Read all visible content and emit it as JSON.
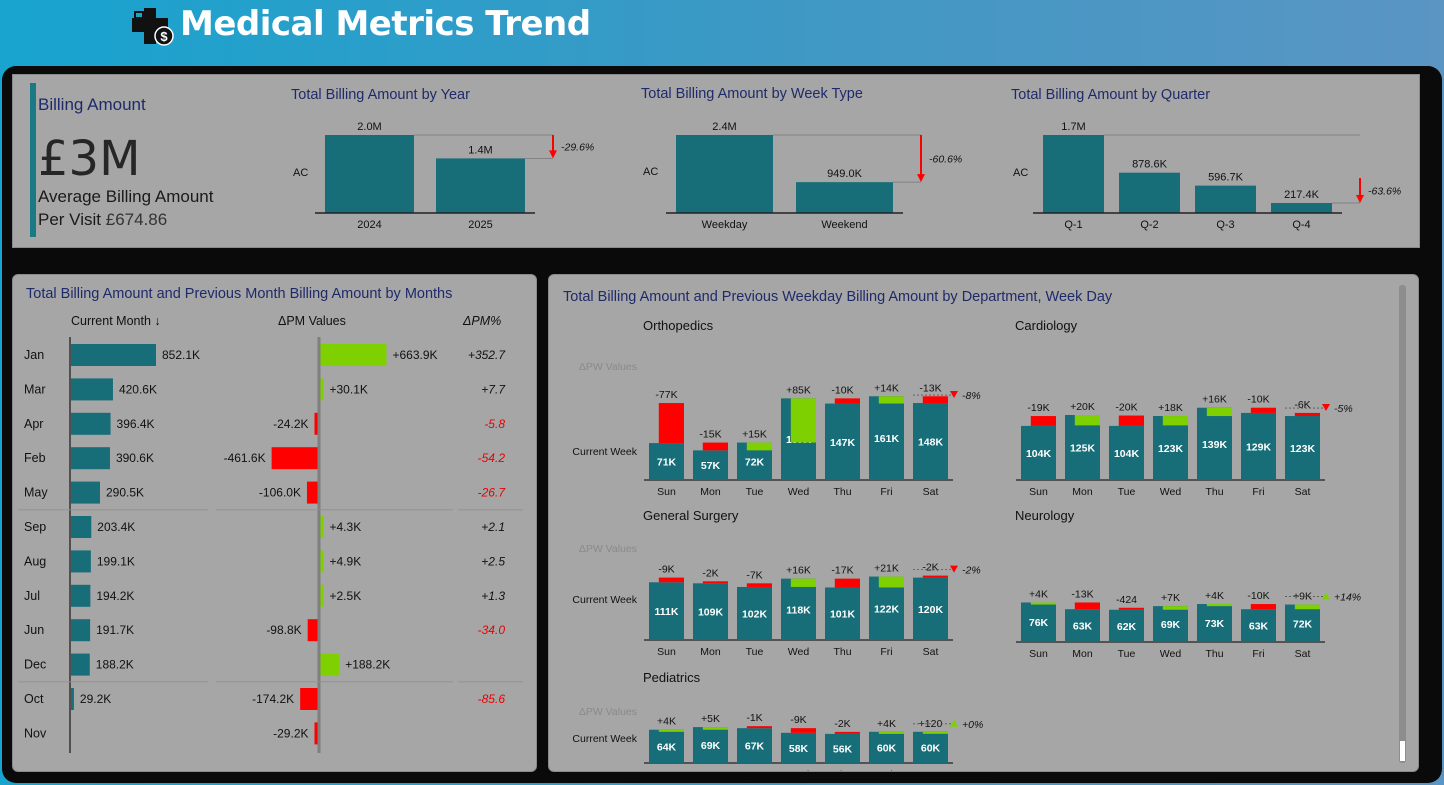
{
  "header": {
    "title": "Medical Metrics Trend",
    "logo_icon": "medical-billing-icon"
  },
  "kpi": {
    "label": "Billing Amount",
    "value": "£3M",
    "avg_label_1": "Average Billing Amount",
    "avg_label_2": "Per Visit",
    "avg_value": "£674.86"
  },
  "colors": {
    "bar": "#176d78",
    "positive": "#7ed000",
    "negative": "#ff0000",
    "title": "#1f2a6b",
    "panel": "#a6a6a6"
  },
  "chart_data": [
    {
      "id": "year",
      "type": "bar",
      "title": "Total Billing Amount by Year",
      "row_label": "AC",
      "categories": [
        "2024",
        "2025"
      ],
      "values": [
        2.0,
        1.4
      ],
      "labels": [
        "2.0M",
        "1.4M"
      ],
      "variance": "-29.6%"
    },
    {
      "id": "weektype",
      "type": "bar",
      "title": "Total Billing Amount by Week Type",
      "row_label": "AC",
      "categories": [
        "Weekday",
        "Weekend"
      ],
      "values": [
        2400,
        949
      ],
      "labels": [
        "2.4M",
        "949.0K"
      ],
      "variance": "-60.6%"
    },
    {
      "id": "quarter",
      "type": "bar",
      "title": "Total Billing Amount by Quarter",
      "row_label": "AC",
      "categories": [
        "Q-1",
        "Q-2",
        "Q-3",
        "Q-4"
      ],
      "values": [
        1700,
        878.6,
        596.7,
        217.4
      ],
      "labels": [
        "1.7M",
        "878.6K",
        "596.7K",
        "217.4K"
      ],
      "variance": "-63.6%"
    },
    {
      "id": "months",
      "type": "table",
      "title": "Total Billing Amount and Previous Month Billing Amount by Months",
      "columns": [
        "Current Month ↓",
        "ΔPM Values",
        "ΔPM%"
      ],
      "rows": [
        {
          "month": "Jan",
          "value": 852.1,
          "label": "852.1K",
          "delta": 663.9,
          "delta_label": "+663.9K",
          "pct": "+352.7"
        },
        {
          "month": "Mar",
          "value": 420.6,
          "label": "420.6K",
          "delta": 30.1,
          "delta_label": "+30.1K",
          "pct": "+7.7"
        },
        {
          "month": "Apr",
          "value": 396.4,
          "label": "396.4K",
          "delta": -24.2,
          "delta_label": "-24.2K",
          "pct": "-5.8"
        },
        {
          "month": "Feb",
          "value": 390.6,
          "label": "390.6K",
          "delta": -461.6,
          "delta_label": "-461.6K",
          "pct": "-54.2"
        },
        {
          "month": "May",
          "value": 290.5,
          "label": "290.5K",
          "delta": -106.0,
          "delta_label": "-106.0K",
          "pct": "-26.7"
        },
        {
          "month": "Sep",
          "value": 203.4,
          "label": "203.4K",
          "delta": 4.3,
          "delta_label": "+4.3K",
          "pct": "+2.1"
        },
        {
          "month": "Aug",
          "value": 199.1,
          "label": "199.1K",
          "delta": 4.9,
          "delta_label": "+4.9K",
          "pct": "+2.5"
        },
        {
          "month": "Jul",
          "value": 194.2,
          "label": "194.2K",
          "delta": 2.5,
          "delta_label": "+2.5K",
          "pct": "+1.3"
        },
        {
          "month": "Jun",
          "value": 191.7,
          "label": "191.7K",
          "delta": -98.8,
          "delta_label": "-98.8K",
          "pct": "-34.0"
        },
        {
          "month": "Dec",
          "value": 188.2,
          "label": "188.2K",
          "delta": 188.2,
          "delta_label": "+188.2K",
          "pct": ""
        },
        {
          "month": "Oct",
          "value": 29.2,
          "label": "29.2K",
          "delta": -174.2,
          "delta_label": "-174.2K",
          "pct": "-85.6"
        },
        {
          "month": "Nov",
          "value": 0,
          "label": "",
          "delta": -29.2,
          "delta_label": "-29.2K",
          "pct": ""
        }
      ]
    },
    {
      "id": "departments",
      "type": "bar",
      "title": "Total Billing Amount and Previous Weekday Billing Amount by Department, Week Day",
      "row_label_delta": "ΔPW Values",
      "row_label_current": "Current Week",
      "categories": [
        "Sun",
        "Mon",
        "Tue",
        "Wed",
        "Thu",
        "Fri",
        "Sat"
      ],
      "panels": [
        {
          "name": "Orthopedics",
          "values": [
            71,
            57,
            72,
            157,
            147,
            161,
            148
          ],
          "labels": [
            "71K",
            "57K",
            "72K",
            "157K",
            "147K",
            "161K",
            "148K"
          ],
          "deltas": [
            -77,
            -15,
            15,
            85,
            -10,
            14,
            -13
          ],
          "delta_labels": [
            "-77K",
            "-15K",
            "+15K",
            "+85K",
            "-10K",
            "+14K",
            "-13K"
          ],
          "variance": "-8%"
        },
        {
          "name": "Cardiology",
          "values": [
            104,
            125,
            104,
            123,
            139,
            129,
            123
          ],
          "labels": [
            "104K",
            "125K",
            "104K",
            "123K",
            "139K",
            "129K",
            "123K"
          ],
          "deltas": [
            -19,
            20,
            -20,
            18,
            16,
            -10,
            -6
          ],
          "delta_labels": [
            "-19K",
            "+20K",
            "-20K",
            "+18K",
            "+16K",
            "-10K",
            "-6K"
          ],
          "variance": "-5%"
        },
        {
          "name": "General Surgery",
          "values": [
            111,
            109,
            102,
            118,
            101,
            122,
            120
          ],
          "labels": [
            "111K",
            "109K",
            "102K",
            "118K",
            "101K",
            "122K",
            "120K"
          ],
          "deltas": [
            -9,
            -2,
            -7,
            16,
            -17,
            21,
            -2
          ],
          "delta_labels": [
            "-9K",
            "-2K",
            "-7K",
            "+16K",
            "-17K",
            "+21K",
            "-2K"
          ],
          "variance": "-2%"
        },
        {
          "name": "Neurology",
          "values": [
            76,
            63,
            62,
            69,
            73,
            63,
            72
          ],
          "labels": [
            "76K",
            "63K",
            "62K",
            "69K",
            "73K",
            "63K",
            "72K"
          ],
          "deltas": [
            4,
            -13,
            -0.424,
            7,
            4,
            -10,
            9
          ],
          "delta_labels": [
            "+4K",
            "-13K",
            "-424",
            "+7K",
            "+4K",
            "-10K",
            "+9K"
          ],
          "variance": "+14%"
        },
        {
          "name": "Pediatrics",
          "values": [
            64,
            69,
            67,
            58,
            56,
            60,
            60
          ],
          "labels": [
            "64K",
            "69K",
            "67K",
            "58K",
            "56K",
            "60K",
            "60K"
          ],
          "deltas": [
            4,
            5,
            -1,
            -9,
            -2,
            4,
            0.12
          ],
          "delta_labels": [
            "+4K",
            "+5K",
            "-1K",
            "-9K",
            "-2K",
            "+4K",
            "+120"
          ],
          "variance": "+0%"
        }
      ]
    }
  ]
}
